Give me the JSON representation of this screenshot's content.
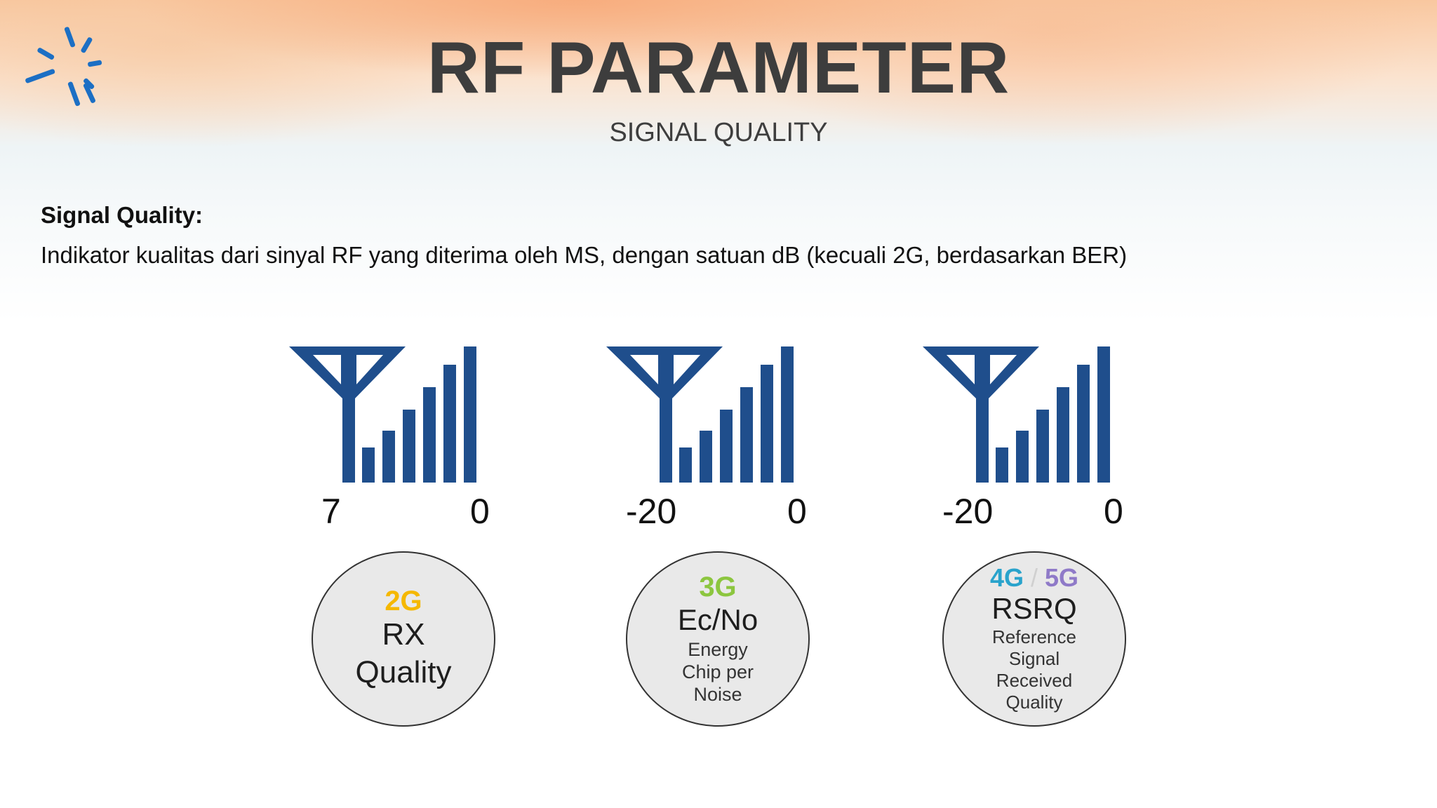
{
  "header": {
    "title": "RF PARAMETER",
    "subtitle": "SIGNAL QUALITY"
  },
  "content": {
    "heading": "Signal Quality:",
    "description": "Indikator kualitas dari sinyal RF yang diterima oleh MS, dengan satuan dB (kecuali 2G, berdasarkan BER)"
  },
  "colors": {
    "signal_icon": "#1f4e8c",
    "logo_blue": "#1c6fc4",
    "gen_2g": "#f5b800",
    "gen_3g": "#8cc63f",
    "gen_4g": "#29a3cc",
    "gen_5g": "#8f7ac8"
  },
  "indicators": [
    {
      "scale_min": "7",
      "scale_max": "0",
      "generation": "2G",
      "metric_lines": [
        "RX",
        "Quality"
      ],
      "description_lines": []
    },
    {
      "scale_min": "-20",
      "scale_max": "0",
      "generation": "3G",
      "metric_lines": [
        "Ec/No"
      ],
      "description_lines": [
        "Energy",
        "Chip per",
        "Noise"
      ]
    },
    {
      "scale_min": "-20",
      "scale_max": "0",
      "generation_a": "4G",
      "generation_sep": "/",
      "generation_b": "5G",
      "metric_lines": [
        "RSRQ"
      ],
      "description_lines": [
        "Reference",
        "Signal",
        "Received",
        "Quality"
      ]
    }
  ]
}
